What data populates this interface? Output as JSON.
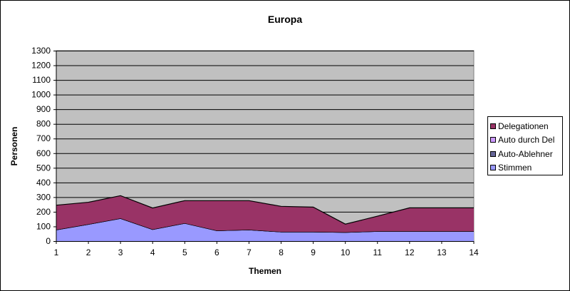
{
  "chart_data": {
    "type": "area",
    "stacked": true,
    "title": "Europa",
    "xlabel": "Themen",
    "ylabel": "Personen",
    "categories": [
      "1",
      "2",
      "3",
      "4",
      "5",
      "6",
      "7",
      "8",
      "9",
      "10",
      "11",
      "12",
      "13",
      "14"
    ],
    "ylim": [
      0,
      1300
    ],
    "yticks": [
      0,
      100,
      200,
      300,
      400,
      500,
      600,
      700,
      800,
      900,
      1000,
      1100,
      1200,
      1300
    ],
    "grid": true,
    "legend_position": "right",
    "series": [
      {
        "name": "Stimmen",
        "color": "#9999ff",
        "values": [
          77,
          115,
          155,
          80,
          122,
          72,
          77,
          63,
          63,
          60,
          67,
          67,
          67,
          67
        ]
      },
      {
        "name": "Auto-Ablehner",
        "color": "#666699",
        "values": [
          0,
          0,
          0,
          0,
          0,
          0,
          0,
          0,
          0,
          0,
          0,
          0,
          0,
          0
        ]
      },
      {
        "name": "Auto durch Del",
        "color": "#cc99ff",
        "values": [
          0,
          0,
          0,
          0,
          0,
          0,
          0,
          0,
          0,
          0,
          0,
          0,
          0,
          0
        ]
      },
      {
        "name": "Delegationen",
        "color": "#993366",
        "values": [
          168,
          150,
          155,
          146,
          154,
          204,
          199,
          174,
          169,
          56,
          103,
          160,
          160,
          160
        ]
      }
    ]
  },
  "legend": {
    "items": [
      {
        "label": "Delegationen",
        "color": "#993366"
      },
      {
        "label": "Auto durch Del",
        "color": "#cc99ff"
      },
      {
        "label": "Auto-Ablehner",
        "color": "#666699"
      },
      {
        "label": "Stimmen",
        "color": "#9999ff"
      }
    ]
  },
  "colors": {
    "plot_background": "#c0c0c0",
    "gridline": "#000000"
  }
}
